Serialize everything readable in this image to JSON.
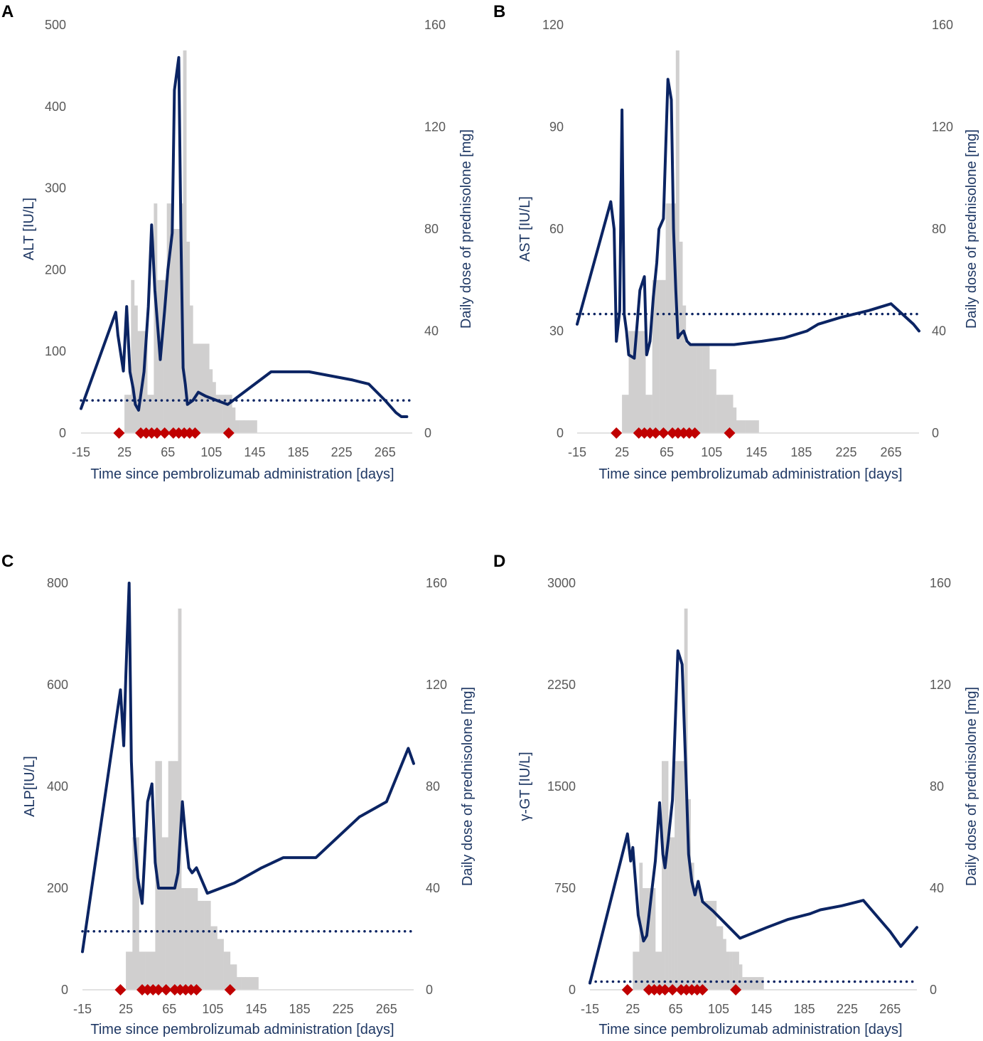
{
  "figure": {
    "background": "#ffffff"
  },
  "colors": {
    "line": "#0b2463",
    "dotted": "#0b2463",
    "bars": "#d0cfcf",
    "marker": "#c00000",
    "tick_text": "#595959",
    "axis_title": "#1f3864"
  },
  "chart_data": [
    {
      "panel": "A",
      "type": "line+bar",
      "xlabel": "Time since pembrolizumab administration [days]",
      "ylabel": "ALT [IU/L]",
      "y2label": "Daily dose of prednisolone [mg]",
      "xticks": [
        -15,
        25,
        65,
        105,
        145,
        185,
        225,
        265
      ],
      "xlim": [
        -15,
        290
      ],
      "ylim": [
        0,
        500
      ],
      "yticks": [
        0,
        100,
        200,
        300,
        400,
        500
      ],
      "y2lim": [
        0,
        160
      ],
      "y2ticks": [
        0,
        40,
        80,
        120,
        160
      ],
      "reference_line": 40,
      "lab_series": {
        "name": "ALT",
        "x": [
          -15,
          17,
          19,
          24,
          27,
          30,
          33,
          35,
          38,
          43,
          47,
          50,
          53,
          58,
          62,
          65,
          69,
          71,
          75,
          77,
          79,
          81,
          83,
          88,
          93,
          100,
          110,
          120,
          125,
          140,
          160,
          180,
          195,
          235,
          250,
          265,
          275,
          280,
          285
        ],
        "y": [
          30,
          148,
          120,
          76,
          155,
          75,
          55,
          35,
          28,
          75,
          155,
          255,
          175,
          90,
          150,
          200,
          245,
          420,
          460,
          240,
          80,
          60,
          35,
          40,
          50,
          45,
          40,
          35,
          40,
          55,
          75,
          75,
          75,
          65,
          60,
          40,
          25,
          20,
          20
        ]
      },
      "prednisolone_dose": {
        "x_start": [
          25,
          28,
          31,
          34,
          37,
          40,
          43,
          46,
          49,
          52,
          55,
          58,
          61,
          64,
          67,
          70,
          73,
          76,
          79,
          82,
          85,
          88,
          91,
          94,
          97,
          100,
          103,
          106,
          109,
          112,
          115,
          118,
          121,
          124,
          127,
          131,
          135,
          139,
          143,
          147,
          151
        ],
        "x_end": [
          28,
          31,
          34,
          37,
          40,
          43,
          46,
          49,
          52,
          55,
          58,
          61,
          64,
          67,
          70,
          73,
          76,
          79,
          82,
          85,
          88,
          91,
          94,
          97,
          100,
          103,
          106,
          109,
          112,
          115,
          118,
          121,
          124,
          127,
          131,
          135,
          139,
          143,
          147,
          151,
          151
        ],
        "dose": [
          15,
          15,
          60,
          50,
          40,
          40,
          40,
          15,
          15,
          90,
          60,
          60,
          60,
          90,
          90,
          80,
          80,
          90,
          150,
          75,
          50,
          35,
          35,
          35,
          35,
          35,
          25,
          20,
          15,
          15,
          15,
          15,
          15,
          10,
          5,
          5,
          5,
          5,
          5,
          0,
          0
        ]
      },
      "hospitalization_markers_x": [
        20,
        40,
        45,
        50,
        55,
        62,
        70,
        75,
        80,
        85,
        90,
        121
      ]
    },
    {
      "panel": "B",
      "type": "line+bar",
      "xlabel": "Time since pembrolizumab administration [days]",
      "ylabel": "AST [IU/L]",
      "y2label": "Daily dose of prednisolone [mg]",
      "xticks": [
        -15,
        25,
        65,
        105,
        145,
        185,
        225,
        265
      ],
      "xlim": [
        -15,
        290
      ],
      "ylim": [
        0,
        120
      ],
      "yticks": [
        0,
        30,
        60,
        90,
        120
      ],
      "y2lim": [
        0,
        160
      ],
      "y2ticks": [
        0,
        40,
        80,
        120,
        160
      ],
      "reference_line": 35,
      "lab_series": {
        "name": "AST",
        "x": [
          -15,
          15,
          18,
          20,
          23,
          25,
          27,
          29,
          31,
          36,
          38,
          41,
          45,
          47,
          50,
          53,
          56,
          58,
          62,
          66,
          69,
          71,
          73,
          75,
          77,
          80,
          83,
          86,
          90,
          100,
          125,
          150,
          170,
          190,
          200,
          220,
          245,
          265,
          285,
          290
        ],
        "y": [
          32,
          68,
          60,
          27,
          36,
          95,
          35,
          30,
          23,
          22,
          30,
          42,
          46,
          23,
          27,
          40,
          50,
          60,
          63,
          104,
          98,
          60,
          42,
          28,
          29,
          30,
          27,
          26,
          26,
          26,
          26,
          27,
          28,
          30,
          32,
          34,
          36,
          38,
          32,
          30
        ]
      },
      "prednisolone_dose": {
        "x_start": [
          25,
          28,
          31,
          34,
          37,
          40,
          43,
          46,
          49,
          52,
          55,
          58,
          61,
          64,
          67,
          70,
          73,
          76,
          79,
          82,
          85,
          88,
          91,
          94,
          97,
          100,
          103,
          106,
          109,
          112,
          115,
          118,
          121,
          124,
          127,
          131,
          135,
          139,
          143,
          147,
          151
        ],
        "x_end": [
          28,
          31,
          34,
          37,
          40,
          43,
          46,
          49,
          52,
          55,
          58,
          61,
          64,
          67,
          70,
          73,
          76,
          79,
          82,
          85,
          88,
          91,
          94,
          97,
          100,
          103,
          106,
          109,
          112,
          115,
          118,
          121,
          124,
          127,
          131,
          135,
          139,
          143,
          147,
          151,
          151
        ],
        "dose": [
          15,
          15,
          40,
          40,
          40,
          40,
          40,
          15,
          15,
          60,
          60,
          60,
          60,
          90,
          90,
          90,
          150,
          75,
          50,
          35,
          35,
          35,
          35,
          35,
          35,
          35,
          25,
          25,
          15,
          15,
          15,
          15,
          15,
          10,
          5,
          5,
          5,
          5,
          5,
          0,
          0
        ]
      },
      "hospitalization_markers_x": [
        20,
        40,
        45,
        50,
        55,
        62,
        70,
        75,
        80,
        85,
        90,
        121
      ]
    },
    {
      "panel": "C",
      "type": "line+bar",
      "xlabel": "Time since pembrolizumab administration [days]",
      "ylabel": "ALP[IU/L]",
      "y2label": "Daily dose of prednisolone [mg]",
      "xticks": [
        -15,
        25,
        65,
        105,
        145,
        185,
        225,
        265
      ],
      "xlim": [
        -15,
        290
      ],
      "ylim": [
        0,
        800
      ],
      "yticks": [
        0,
        200,
        400,
        600,
        800
      ],
      "y2lim": [
        0,
        160
      ],
      "y2ticks": [
        0,
        40,
        80,
        120,
        160
      ],
      "reference_line": 115,
      "lab_series": {
        "name": "ALP",
        "x": [
          -15,
          20,
          23,
          25,
          28,
          30,
          33,
          36,
          40,
          45,
          49,
          52,
          55,
          59,
          65,
          70,
          73,
          77,
          80,
          83,
          86,
          90,
          100,
          125,
          150,
          170,
          190,
          200,
          220,
          240,
          265,
          285,
          290
        ],
        "y": [
          75,
          590,
          480,
          620,
          800,
          450,
          300,
          220,
          170,
          370,
          405,
          250,
          200,
          200,
          200,
          200,
          230,
          370,
          300,
          240,
          230,
          240,
          190,
          210,
          240,
          260,
          260,
          260,
          300,
          340,
          370,
          475,
          445
        ]
      },
      "prednisolone_dose": {
        "x_start": [
          25,
          28,
          31,
          34,
          37,
          40,
          43,
          46,
          49,
          52,
          55,
          58,
          61,
          64,
          67,
          70,
          73,
          76,
          79,
          82,
          85,
          88,
          91,
          94,
          97,
          100,
          103,
          106,
          109,
          112,
          115,
          118,
          121,
          124,
          127,
          131,
          135,
          139,
          143,
          147,
          151
        ],
        "x_end": [
          28,
          31,
          34,
          37,
          40,
          43,
          46,
          49,
          52,
          55,
          58,
          61,
          64,
          67,
          70,
          73,
          76,
          79,
          82,
          85,
          88,
          91,
          94,
          97,
          100,
          103,
          106,
          109,
          112,
          115,
          118,
          121,
          124,
          127,
          131,
          135,
          139,
          143,
          147,
          151,
          151
        ],
        "dose": [
          15,
          15,
          60,
          60,
          15,
          15,
          15,
          15,
          15,
          90,
          90,
          60,
          60,
          90,
          90,
          90,
          150,
          40,
          40,
          40,
          40,
          40,
          35,
          35,
          35,
          35,
          25,
          25,
          20,
          20,
          15,
          15,
          10,
          10,
          5,
          5,
          5,
          5,
          5,
          0,
          0
        ]
      },
      "hospitalization_markers_x": [
        20,
        40,
        45,
        50,
        55,
        62,
        70,
        75,
        80,
        85,
        90,
        121
      ]
    },
    {
      "panel": "D",
      "type": "line+bar",
      "xlabel": "Time since pembrolizumab administration [days]",
      "ylabel": "γ-GT [IU/L]",
      "y2label": "Daily dose of prednisolone [mg]",
      "xticks": [
        -15,
        25,
        65,
        105,
        145,
        185,
        225,
        265
      ],
      "xlim": [
        -15,
        290
      ],
      "ylim": [
        0,
        3000
      ],
      "yticks": [
        0,
        750,
        1500,
        2250,
        3000
      ],
      "y2lim": [
        0,
        160
      ],
      "y2ticks": [
        0,
        40,
        80,
        120,
        160
      ],
      "reference_line": 60,
      "lab_series": {
        "name": "γ-GT",
        "x": [
          -15,
          20,
          23,
          25,
          27,
          30,
          35,
          38,
          43,
          46,
          50,
          53,
          55,
          58,
          62,
          67,
          71,
          75,
          77,
          80,
          83,
          86,
          90,
          100,
          125,
          150,
          170,
          190,
          200,
          220,
          240,
          265,
          275,
          290
        ],
        "y": [
          50,
          1150,
          950,
          1050,
          850,
          550,
          360,
          400,
          750,
          950,
          1380,
          1000,
          900,
          1100,
          1400,
          2500,
          2400,
          1500,
          1000,
          800,
          700,
          800,
          650,
          580,
          380,
          460,
          520,
          560,
          590,
          620,
          660,
          430,
          320,
          460
        ]
      },
      "prednisolone_dose": {
        "x_start": [
          25,
          28,
          31,
          34,
          37,
          40,
          43,
          46,
          49,
          52,
          55,
          58,
          61,
          64,
          67,
          70,
          73,
          76,
          79,
          82,
          85,
          88,
          91,
          94,
          97,
          100,
          103,
          106,
          109,
          112,
          115,
          118,
          121,
          124,
          127,
          131,
          135,
          139,
          143,
          147,
          151
        ],
        "x_end": [
          28,
          31,
          34,
          37,
          40,
          43,
          46,
          49,
          52,
          55,
          58,
          61,
          64,
          67,
          70,
          73,
          76,
          79,
          82,
          85,
          88,
          91,
          94,
          97,
          100,
          103,
          106,
          109,
          112,
          115,
          118,
          121,
          124,
          127,
          131,
          135,
          139,
          143,
          147,
          151,
          151
        ],
        "dose": [
          15,
          15,
          50,
          40,
          40,
          40,
          40,
          15,
          15,
          90,
          90,
          60,
          60,
          90,
          90,
          90,
          150,
          75,
          50,
          40,
          40,
          35,
          35,
          35,
          35,
          35,
          25,
          25,
          20,
          15,
          15,
          15,
          15,
          10,
          5,
          5,
          5,
          5,
          5,
          0,
          0
        ]
      },
      "hospitalization_markers_x": [
        20,
        40,
        45,
        50,
        55,
        62,
        70,
        75,
        80,
        85,
        90,
        121
      ]
    }
  ]
}
